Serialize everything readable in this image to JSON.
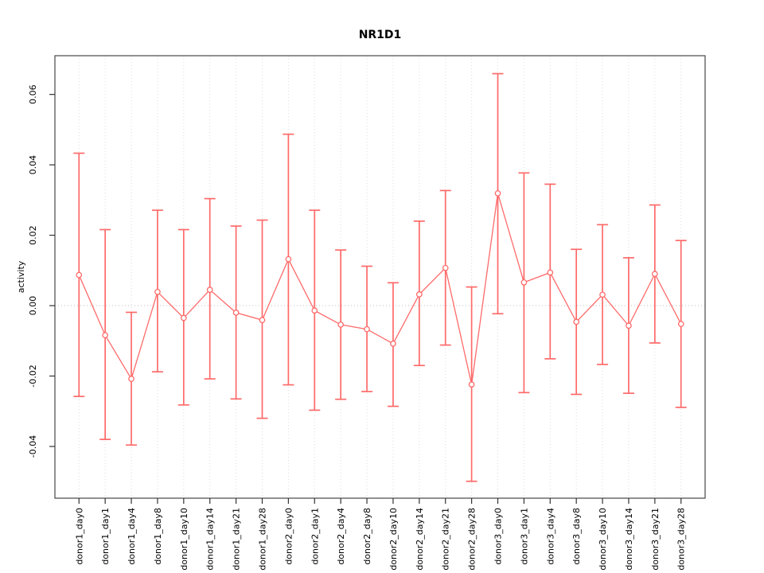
{
  "title": "NR1D1",
  "chart_data": {
    "type": "line",
    "title": "NR1D1",
    "xlabel": "",
    "ylabel": "activity",
    "categories": [
      "donor1_day0",
      "donor1_day1",
      "donor1_day4",
      "donor1_day8",
      "donor1_day10",
      "donor1_day14",
      "donor1_day21",
      "donor1_day28",
      "donor2_day0",
      "donor2_day1",
      "donor2_day4",
      "donor2_day8",
      "donor2_day10",
      "donor2_day14",
      "donor2_day21",
      "donor2_day28",
      "donor3_day0",
      "donor3_day1",
      "donor3_day4",
      "donor3_day8",
      "donor3_day10",
      "donor3_day14",
      "donor3_day21",
      "donor3_day28"
    ],
    "series": [
      {
        "name": "activity",
        "values": [
          0.0087,
          -0.0084,
          -0.0208,
          0.0039,
          -0.0035,
          0.0045,
          -0.002,
          -0.0041,
          0.0132,
          -0.0014,
          -0.0054,
          -0.0067,
          -0.0108,
          0.0032,
          0.0107,
          -0.0224,
          0.0319,
          0.0066,
          0.0094,
          -0.0046,
          0.0031,
          -0.0057,
          0.009,
          -0.0052
        ],
        "error_high": [
          0.0433,
          0.0216,
          -0.0019,
          0.0271,
          0.0216,
          0.0304,
          0.0226,
          0.0243,
          0.0487,
          0.0271,
          0.0158,
          0.0112,
          0.0065,
          0.024,
          0.0327,
          0.0053,
          0.0659,
          0.0377,
          0.0345,
          0.016,
          0.023,
          0.0136,
          0.0286,
          0.0185
        ],
        "error_low": [
          -0.0258,
          -0.038,
          -0.0396,
          -0.0188,
          -0.0282,
          -0.0208,
          -0.0265,
          -0.032,
          -0.0225,
          -0.0297,
          -0.0266,
          -0.0244,
          -0.0286,
          -0.017,
          -0.0112,
          -0.0499,
          -0.0023,
          -0.0247,
          -0.0151,
          -0.0252,
          -0.0167,
          -0.0249,
          -0.0106,
          -0.0289
        ]
      }
    ],
    "ylim": [
      -0.0547,
      0.071
    ],
    "xlim": [
      0.08,
      24.92
    ],
    "yticks": [
      -0.04,
      -0.02,
      0.0,
      0.02,
      0.04,
      0.06
    ],
    "ytick_labels": [
      "-0.04",
      "-0.02",
      "0.00",
      "0.02",
      "0.04",
      "0.06"
    ],
    "grid": "vertical-dotted",
    "zero_line": true,
    "legend": "none",
    "marker": "open-circle",
    "colors": {
      "series": "#ff6a6a",
      "grid": "#dcdcdc",
      "zero_line": "#bdbdbd",
      "frame": "#555555",
      "tick": "#333333",
      "text": "#000000",
      "background": "#ffffff"
    }
  }
}
